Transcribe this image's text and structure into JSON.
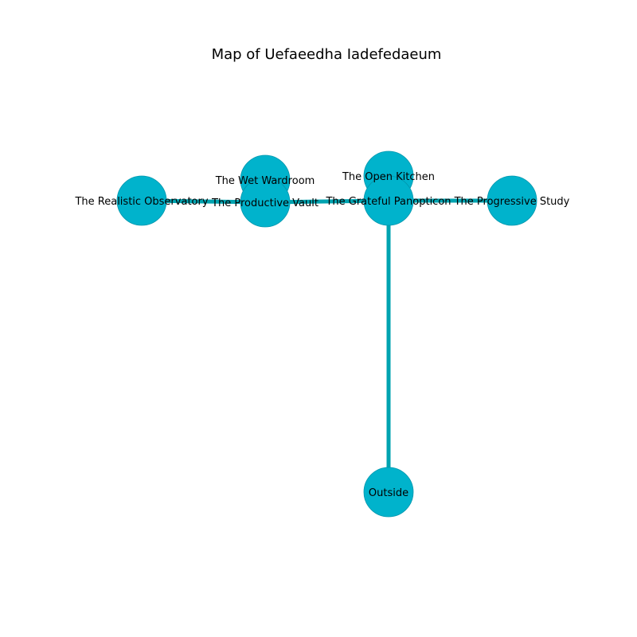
{
  "title": "Map of Uefaeedha Iadefedaeum",
  "colors": {
    "node_fill": "#00b3cc",
    "node_stroke": "#0096ad",
    "edge": "#00a3b0",
    "text": "#000000",
    "background": "#ffffff"
  },
  "nodes": [
    {
      "id": "realistic",
      "label": "The Realistic Observatory"
    },
    {
      "id": "wet",
      "label": "The Wet Wardroom"
    },
    {
      "id": "vault",
      "label": "The Productive Vault"
    },
    {
      "id": "kitchen",
      "label": "The Open Kitchen"
    },
    {
      "id": "panopticon",
      "label": "The Grateful Panopticon"
    },
    {
      "id": "study",
      "label": "The Progressive Study"
    },
    {
      "id": "outside",
      "label": "Outside"
    }
  ],
  "edges": [
    {
      "from": "realistic",
      "to": "vault"
    },
    {
      "from": "wet",
      "to": "vault"
    },
    {
      "from": "vault",
      "to": "panopticon"
    },
    {
      "from": "kitchen",
      "to": "panopticon"
    },
    {
      "from": "panopticon",
      "to": "study"
    },
    {
      "from": "panopticon",
      "to": "outside"
    }
  ]
}
